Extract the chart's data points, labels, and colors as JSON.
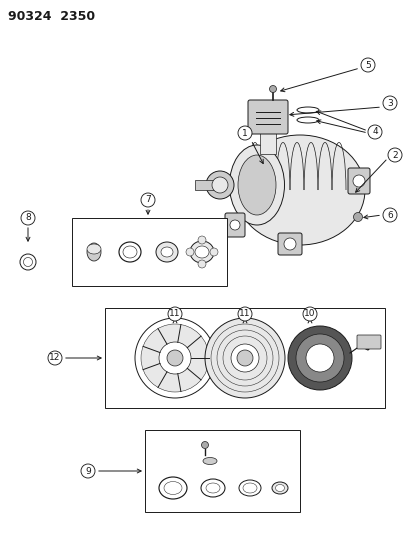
{
  "title": "90324  2350",
  "bg_color": "#ffffff",
  "fg_color": "#1a1a1a",
  "fig_width": 4.14,
  "fig_height": 5.33,
  "dpi": 100,
  "lw": 0.7
}
